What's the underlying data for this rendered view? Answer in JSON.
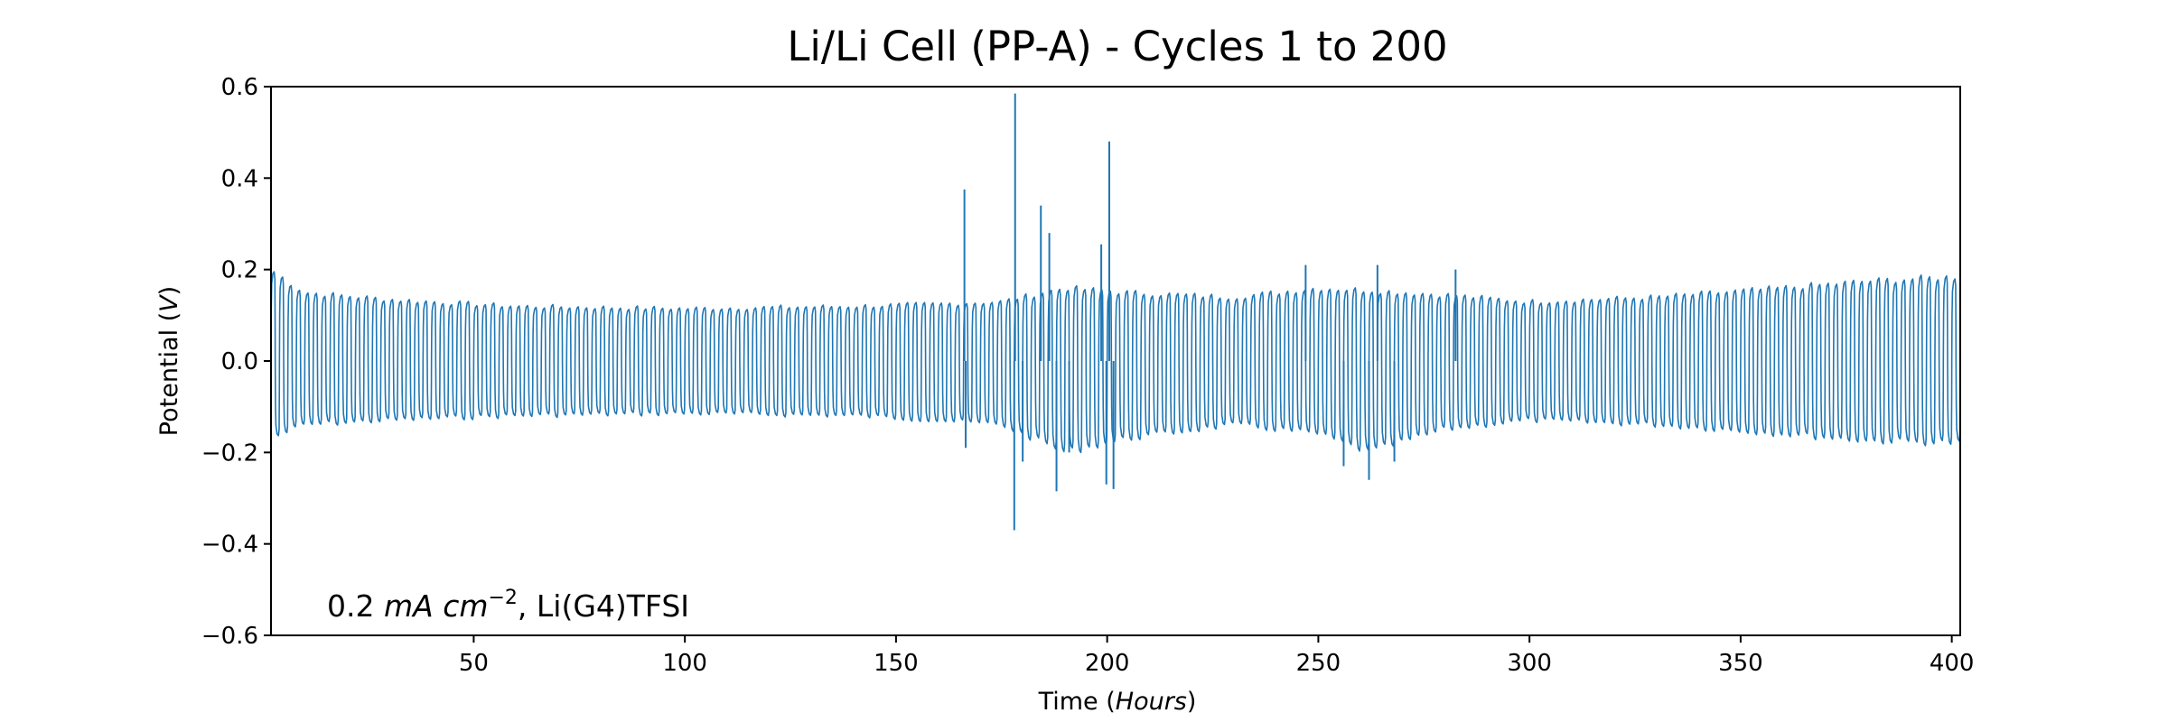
{
  "chart_data": {
    "type": "line",
    "title": "Li/Li Cell (PP-A) - Cycles 1 to 200",
    "xlabel": {
      "prefix": "Time (",
      "italic": "Hours",
      "suffix": ")"
    },
    "ylabel": {
      "prefix": "Potential (",
      "italic": "V",
      "suffix": ")"
    },
    "annotation": {
      "value": "0.2 ",
      "unit": "mA cm",
      "exponent": "−2",
      "rest": ", Li(G4)TFSI"
    },
    "xlim": [
      2,
      402
    ],
    "ylim": [
      -0.6,
      0.6
    ],
    "xticks": [
      50,
      100,
      150,
      200,
      250,
      300,
      350,
      400
    ],
    "xtick_labels": [
      "50",
      "100",
      "150",
      "200",
      "250",
      "300",
      "350",
      "400"
    ],
    "yticks": [
      -0.6,
      -0.4,
      -0.2,
      0.0,
      0.2,
      0.4,
      0.6
    ],
    "ytick_labels": [
      "−0.6",
      "−0.4",
      "−0.2",
      "0.0",
      "0.2",
      "0.4",
      "0.6"
    ],
    "grid": false,
    "line_color": "#1f77b4",
    "series": [
      {
        "cycles": 200,
        "cycle_period_hours": 2,
        "t_start_hours": 2,
        "amplitude_envelope": {
          "t": [
            2,
            10,
            30,
            60,
            100,
            140,
            160,
            175,
            190,
            205,
            230,
            250,
            262,
            280,
            300,
            330,
            360,
            380,
            402
          ],
          "pos": [
            0.2,
            0.15,
            0.135,
            0.12,
            0.115,
            0.12,
            0.125,
            0.13,
            0.16,
            0.15,
            0.14,
            0.16,
            0.155,
            0.145,
            0.13,
            0.14,
            0.16,
            0.175,
            0.185
          ],
          "neg": [
            -0.17,
            -0.14,
            -0.13,
            -0.12,
            -0.115,
            -0.12,
            -0.13,
            -0.14,
            -0.2,
            -0.17,
            -0.14,
            -0.16,
            -0.2,
            -0.15,
            -0.13,
            -0.14,
            -0.16,
            -0.175,
            -0.18
          ]
        },
        "spikes": [
          {
            "t": 166.2,
            "v": 0.375
          },
          {
            "t": 166.5,
            "v": -0.19
          },
          {
            "t": 178.2,
            "v": 0.585
          },
          {
            "t": 178.0,
            "v": -0.37
          },
          {
            "t": 180.0,
            "v": -0.22
          },
          {
            "t": 184.3,
            "v": 0.34
          },
          {
            "t": 186.3,
            "v": 0.28
          },
          {
            "t": 188.0,
            "v": -0.285
          },
          {
            "t": 191.0,
            "v": -0.2
          },
          {
            "t": 198.6,
            "v": 0.255
          },
          {
            "t": 200.5,
            "v": 0.48
          },
          {
            "t": 199.8,
            "v": -0.27
          },
          {
            "t": 201.5,
            "v": -0.28
          },
          {
            "t": 247.0,
            "v": 0.21
          },
          {
            "t": 256.0,
            "v": -0.23
          },
          {
            "t": 262.0,
            "v": -0.26
          },
          {
            "t": 264.0,
            "v": 0.21
          },
          {
            "t": 268.0,
            "v": -0.22
          },
          {
            "t": 282.5,
            "v": 0.2
          }
        ]
      }
    ]
  }
}
